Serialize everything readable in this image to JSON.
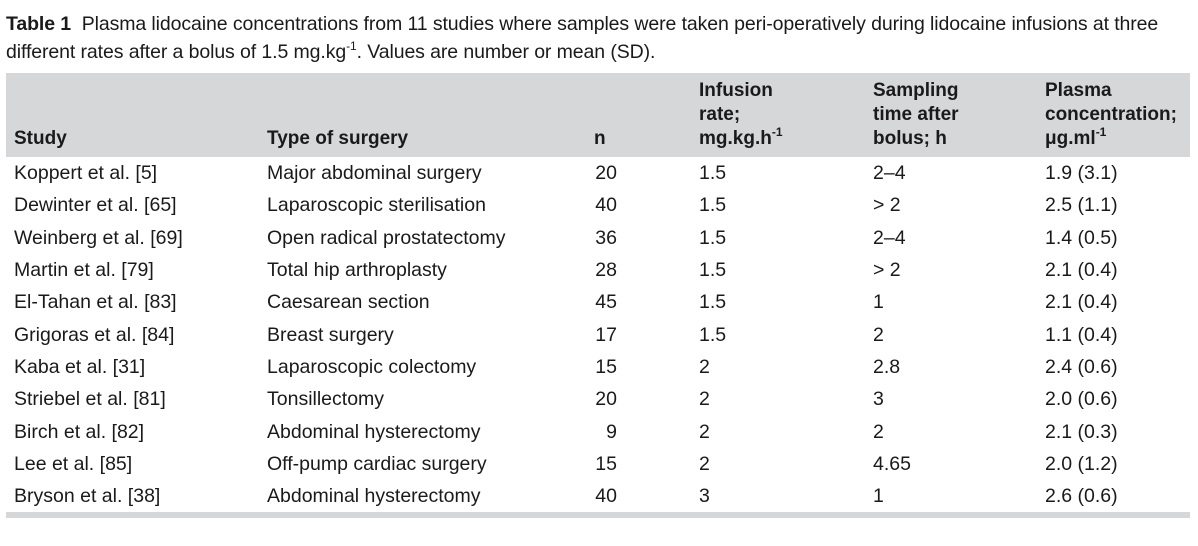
{
  "caption": {
    "label": "Table 1",
    "text_before_sup": "Plasma lidocaine concentrations from 11 studies where samples were taken peri-operatively during lidocaine infusions at three different rates after a bolus of 1.5  mg.kg",
    "sup": "-1",
    "text_after_sup": ". Values are number or mean (SD)."
  },
  "headers": {
    "study": "Study",
    "type_of_surgery": "Type of surgery",
    "n": "n",
    "infusion_rate_line1": "Infusion",
    "infusion_rate_line2": "rate;",
    "infusion_rate_line3": "mg.kg.h",
    "infusion_rate_sup": "-1",
    "sampling_line1": "Sampling",
    "sampling_line2": "time after",
    "sampling_line3": "bolus; h",
    "plasma_line1": "Plasma",
    "plasma_line2": "concentration;",
    "plasma_line3": "μg.ml",
    "plasma_sup": "-1"
  },
  "rows": [
    {
      "study": "Koppert et al. [5]",
      "type": "Major abdominal surgery",
      "n": "20",
      "rate": "1.5",
      "time": "2–4",
      "conc": "1.9 (3.1)"
    },
    {
      "study": "Dewinter et al. [65]",
      "type": "Laparoscopic sterilisation",
      "n": "40",
      "rate": "1.5",
      "time": "> 2",
      "conc": "2.5 (1.1)"
    },
    {
      "study": "Weinberg et al. [69]",
      "type": "Open radical prostatectomy",
      "n": "36",
      "rate": "1.5",
      "time": "2–4",
      "conc": "1.4 (0.5)"
    },
    {
      "study": "Martin et al. [79]",
      "type": "Total hip arthroplasty",
      "n": "28",
      "rate": "1.5",
      "time": "> 2",
      "conc": "2.1 (0.4)"
    },
    {
      "study": "El-Tahan et al. [83]",
      "type": "Caesarean section",
      "n": "45",
      "rate": "1.5",
      "time": "1",
      "conc": "2.1 (0.4)"
    },
    {
      "study": "Grigoras et al. [84]",
      "type": "Breast surgery",
      "n": "17",
      "rate": "1.5",
      "time": "2",
      "conc": "1.1 (0.4)"
    },
    {
      "study": "Kaba et al. [31]",
      "type": "Laparoscopic colectomy",
      "n": "15",
      "rate": "2",
      "time": "2.8",
      "conc": "2.4 (0.6)"
    },
    {
      "study": "Striebel et al. [81]",
      "type": "Tonsillectomy",
      "n": "20",
      "rate": "2",
      "time": "3",
      "conc": "2.0 (0.6)"
    },
    {
      "study": "Birch et al. [82]",
      "type": "Abdominal hysterectomy",
      "n": "9",
      "rate": "2",
      "time": "2",
      "conc": "2.1 (0.3)"
    },
    {
      "study": "Lee et al. [85]",
      "type": "Off-pump cardiac surgery",
      "n": "15",
      "rate": "2",
      "time": "4.65",
      "conc": "2.0 (1.2)"
    },
    {
      "study": "Bryson et al. [38]",
      "type": "Abdominal hysterectomy",
      "n": "40",
      "rate": "3",
      "time": "1",
      "conc": "2.6 (0.6)"
    }
  ]
}
